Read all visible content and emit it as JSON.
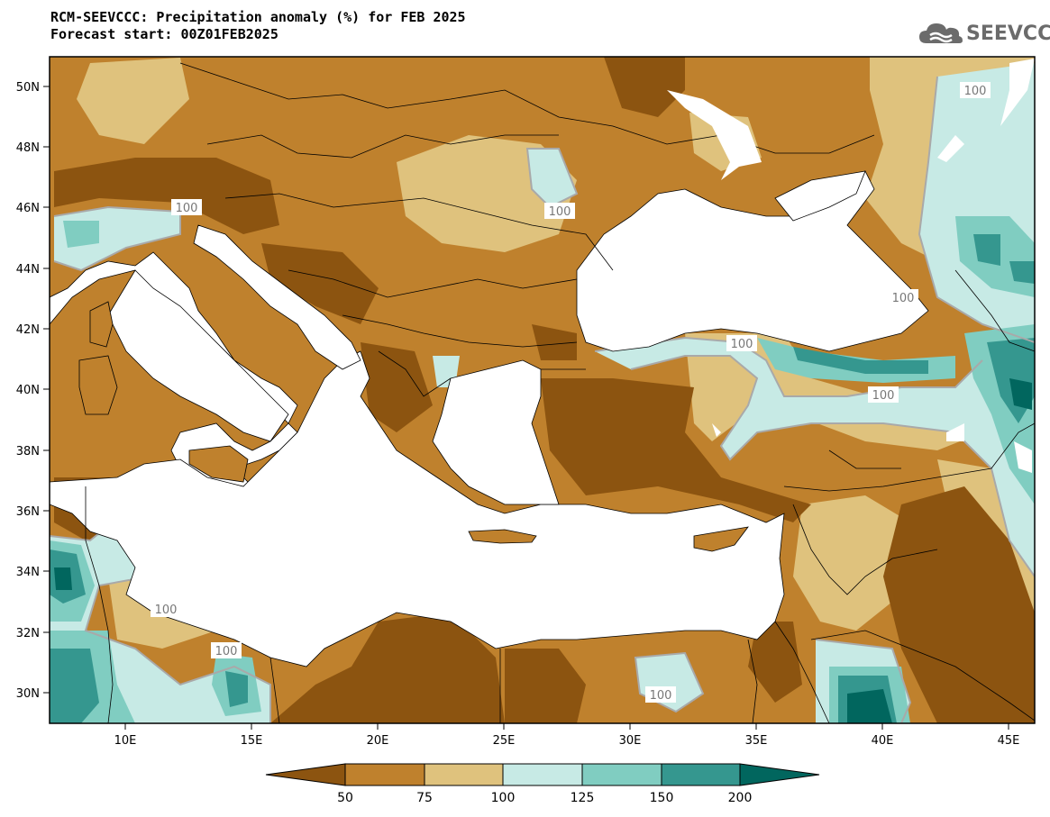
{
  "title": {
    "line1": "RCM-SEEVCCC: Precipitation anomaly (%) for FEB 2025",
    "line2": "Forecast start: 00Z01FEB2025"
  },
  "logo": {
    "text": "SEEVCCC",
    "icon": "cloud-icon"
  },
  "map": {
    "lon_range": [
      7,
      46
    ],
    "lat_range": [
      29,
      51
    ],
    "lon_ticks": [
      "10E",
      "15E",
      "20E",
      "25E",
      "30E",
      "35E",
      "40E",
      "45E"
    ],
    "lat_ticks": [
      "50N",
      "48N",
      "46N",
      "44N",
      "42N",
      "40N",
      "38N",
      "36N",
      "34N",
      "32N",
      "30N"
    ],
    "contour_labels": [
      "100",
      "100",
      "100",
      "100",
      "100",
      "100",
      "100",
      "100",
      "100"
    ]
  },
  "colorbar": {
    "ticks": [
      "50",
      "75",
      "100",
      "125",
      "150",
      "200"
    ],
    "colors": {
      "below_50": "#8c5410",
      "c50_75": "#bf812d",
      "c75_100": "#dfc27d",
      "c100_125": "#c7eae5",
      "c125_150": "#80cdc1",
      "c150_200": "#35978f",
      "above_200": "#01665e"
    }
  }
}
